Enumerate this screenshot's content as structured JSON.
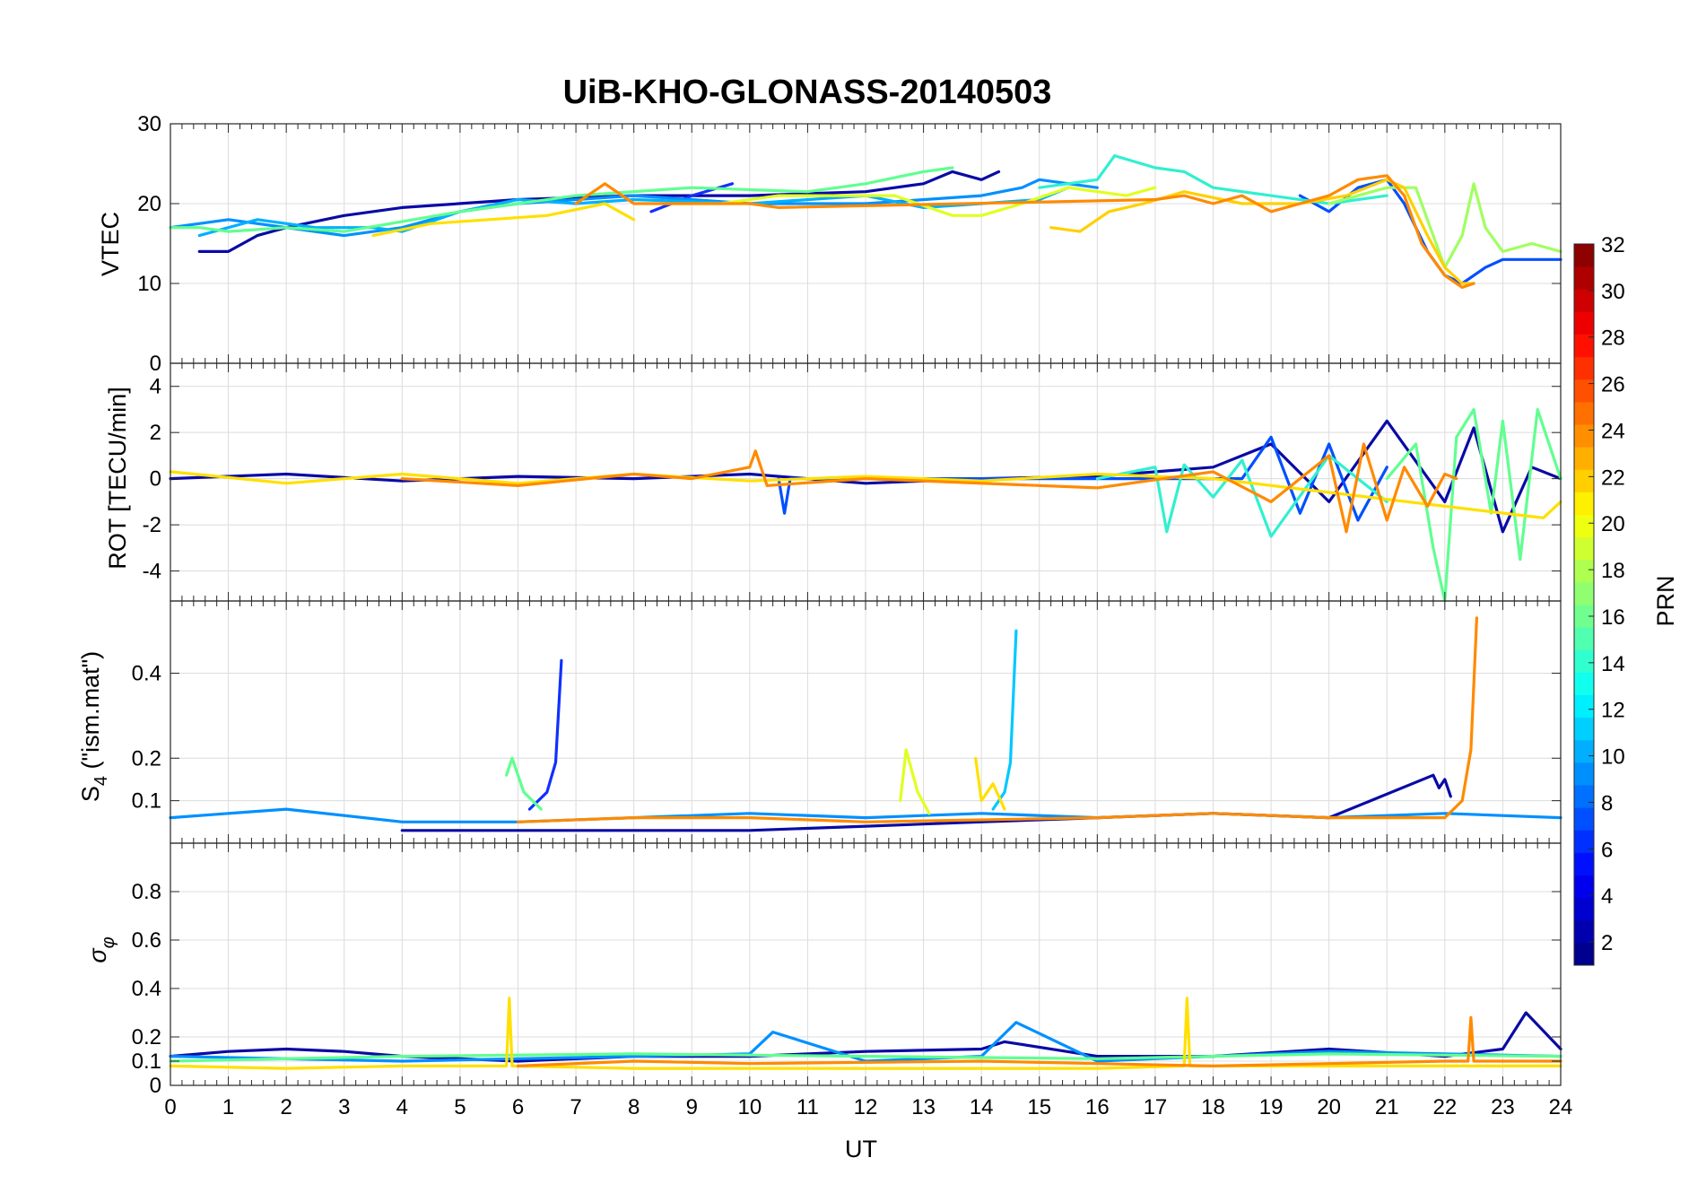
{
  "chart_data": [
    {
      "type": "line",
      "title": "UiB-KHO-GLONASS-20140503",
      "xlabel": "",
      "ylabel": "VTEC",
      "xlim": [
        0,
        24
      ],
      "ylim": [
        0,
        30
      ],
      "xticks": [
        0,
        1,
        2,
        3,
        4,
        5,
        6,
        7,
        8,
        9,
        10,
        11,
        12,
        13,
        14,
        15,
        16,
        17,
        18,
        19,
        20,
        21,
        22,
        23,
        24
      ],
      "yticks": [
        0,
        10,
        20,
        30
      ],
      "grid": true,
      "series": [
        {
          "prn": 2,
          "color": "#0a0aa6",
          "x": [
            0.5,
            1,
            1.5,
            2,
            3,
            4,
            6,
            8,
            10,
            12,
            13,
            13.5,
            14,
            14.3
          ],
          "y": [
            14,
            14,
            16,
            17,
            18.5,
            19.5,
            20.5,
            21,
            21,
            21.5,
            22.5,
            24,
            23,
            24
          ]
        },
        {
          "prn": 5,
          "color": "#1030ff",
          "x": [
            8.3,
            9,
            9.7
          ],
          "y": [
            19,
            21,
            22.5
          ]
        },
        {
          "prn": 6,
          "color": "#0050ff",
          "x": [
            19.5,
            20,
            20.5,
            21,
            21.3,
            21.7,
            22,
            22.3,
            22.7,
            23,
            24
          ],
          "y": [
            21,
            19,
            22,
            23,
            20,
            14,
            11,
            10,
            12,
            13,
            13
          ]
        },
        {
          "prn": 9,
          "color": "#0090ff",
          "x": [
            0,
            1,
            2,
            3,
            4,
            5,
            6,
            8,
            10,
            12,
            14,
            14.7,
            15,
            16
          ],
          "y": [
            17,
            18,
            17,
            16,
            17,
            19,
            20,
            21,
            20,
            20,
            21,
            22,
            23,
            22
          ]
        },
        {
          "prn": 10,
          "color": "#00b0ff",
          "x": [
            0.5,
            1.5,
            2.5,
            3.5,
            4,
            5,
            6,
            7,
            8,
            10,
            12,
            13,
            14,
            15,
            15.5
          ],
          "y": [
            16,
            18,
            17,
            17,
            16.5,
            19,
            20.5,
            20,
            20.5,
            20,
            21,
            19.5,
            20,
            20.5,
            22
          ]
        },
        {
          "prn": 14,
          "color": "#30f0d0",
          "x": [
            15,
            16,
            16.3,
            17,
            17.5,
            18,
            19,
            20,
            21
          ],
          "y": [
            22,
            23,
            26,
            24.5,
            24,
            22,
            21,
            20,
            21
          ]
        },
        {
          "prn": 15,
          "color": "#60ff90",
          "x": [
            0,
            0.5,
            1,
            2,
            3,
            5,
            7,
            9,
            11,
            12,
            13,
            13.5
          ],
          "y": [
            17,
            17,
            16.5,
            17,
            16.5,
            19,
            21,
            22,
            21.5,
            22.5,
            24,
            24.5
          ]
        },
        {
          "prn": 17,
          "color": "#a0ff60",
          "x": [
            20,
            20.5,
            21,
            21.5,
            22,
            22.3,
            22.5,
            22.7,
            23,
            23.5,
            24
          ],
          "y": [
            20,
            21,
            22,
            22,
            12,
            16,
            22.5,
            17,
            14,
            15,
            14
          ]
        },
        {
          "prn": 19,
          "color": "#e0ff20",
          "x": [
            8.5,
            9.5,
            10.5,
            11.5,
            12.5,
            13.5,
            14,
            14.7,
            15.5,
            16.5,
            17
          ],
          "y": [
            20,
            20,
            21,
            21,
            21,
            18.5,
            18.5,
            20,
            22,
            21,
            22
          ]
        },
        {
          "prn": 20,
          "color": "#ffe000",
          "x": [
            3.5,
            4.5,
            5.5,
            6.5,
            7.5,
            8
          ],
          "y": [
            16,
            17.5,
            18,
            18.5,
            20,
            18
          ]
        },
        {
          "prn": 21,
          "color": "#ffd000",
          "x": [
            15.2,
            15.7,
            16.2,
            16.8,
            17.5,
            18.5,
            19.5,
            20.3,
            21,
            21.3,
            21.7,
            22,
            22.3,
            22.5
          ],
          "y": [
            17,
            16.5,
            19,
            20,
            21.5,
            20,
            20,
            21,
            23,
            22,
            16,
            12,
            10,
            10
          ]
        },
        {
          "prn": 23,
          "color": "#ff8a00",
          "x": [
            7,
            7.5,
            8,
            9,
            10,
            10.5,
            17,
            17.5,
            18,
            18.5,
            19,
            19.5,
            20,
            20.5,
            21,
            21.3,
            21.6,
            22,
            22.3,
            22.5
          ],
          "y": [
            20,
            22.5,
            20,
            20,
            20,
            19.5,
            20.5,
            21,
            20,
            21,
            19,
            20,
            21,
            23,
            23.5,
            21,
            15,
            11,
            9.5,
            10
          ]
        }
      ]
    },
    {
      "type": "line",
      "xlabel": "",
      "ylabel": "ROT [TECU/min]",
      "xlim": [
        0,
        24
      ],
      "ylim": [
        -5.3,
        5
      ],
      "yticks": [
        -4,
        -2,
        0,
        2,
        4
      ],
      "grid": true,
      "series": [
        {
          "prn": 2,
          "color": "#0a0aa6",
          "x": [
            0,
            2,
            4,
            6,
            8,
            10,
            12,
            14,
            16,
            18,
            19,
            20,
            21,
            22,
            22.5,
            23,
            23.5,
            24
          ],
          "y": [
            0,
            0.2,
            -0.1,
            0.1,
            0,
            0.2,
            -0.2,
            0,
            0.1,
            0.5,
            1.5,
            -1,
            2.5,
            -1,
            2.2,
            -2.3,
            0.5,
            0
          ]
        },
        {
          "prn": 6,
          "color": "#0050ff",
          "x": [
            10.5,
            10.6,
            10.7,
            18.5,
            19,
            19.5,
            20,
            20.5,
            21
          ],
          "y": [
            0,
            -1.5,
            0,
            0,
            1.8,
            -1.5,
            1.5,
            -1.8,
            0.5
          ]
        },
        {
          "prn": 14,
          "color": "#30f0d0",
          "x": [
            16,
            17,
            17.2,
            17.5,
            18,
            18.5,
            19,
            20,
            21
          ],
          "y": [
            0,
            0.5,
            -2.3,
            0.6,
            -0.8,
            0.8,
            -2.5,
            1,
            -1
          ]
        },
        {
          "prn": 16,
          "color": "#60ff90",
          "x": [
            21,
            21.5,
            21.8,
            22,
            22.2,
            22.5,
            22.8,
            23,
            23.3,
            23.6,
            24
          ],
          "y": [
            0,
            1.5,
            -3,
            -5.3,
            1.8,
            3,
            -1.5,
            2.5,
            -3.5,
            3,
            0
          ]
        },
        {
          "prn": 20,
          "color": "#ffe000",
          "x": [
            0,
            2,
            4,
            6,
            8,
            10,
            12,
            14,
            16,
            18,
            23.7,
            24
          ],
          "y": [
            0.3,
            -0.2,
            0.2,
            -0.2,
            0.2,
            -0.1,
            0.1,
            -0.1,
            0.2,
            0,
            -1.7,
            -1
          ]
        },
        {
          "prn": 23,
          "color": "#ff8a00",
          "x": [
            4,
            6,
            8,
            9,
            10,
            10.1,
            10.3,
            12,
            16,
            18,
            19,
            20,
            20.3,
            20.6,
            21,
            21.3,
            21.7,
            22,
            22.2
          ],
          "y": [
            0,
            -0.3,
            0.2,
            0,
            0.5,
            1.2,
            -0.3,
            0,
            -0.4,
            0.3,
            -1,
            1,
            -2.3,
            1.5,
            -1.8,
            0.5,
            -1.2,
            0.2,
            0
          ]
        }
      ]
    },
    {
      "type": "line",
      "xlabel": "",
      "ylabel": "S4 (\"ism.mat\")",
      "xlim": [
        0,
        24
      ],
      "ylim": [
        0,
        0.57
      ],
      "yticks": [
        0.1,
        0.2,
        0.4
      ],
      "grid": true,
      "series": [
        {
          "prn": 2,
          "color": "#0a0aa6",
          "x": [
            4,
            6,
            8,
            10,
            12,
            14,
            16,
            18,
            20,
            21.8,
            21.9,
            22,
            22.1
          ],
          "y": [
            0.03,
            0.03,
            0.03,
            0.03,
            0.04,
            0.05,
            0.06,
            0.07,
            0.06,
            0.16,
            0.13,
            0.15,
            0.11
          ]
        },
        {
          "prn": 5,
          "color": "#1030ff",
          "x": [
            6.2,
            6.5,
            6.65,
            6.75
          ],
          "y": [
            0.08,
            0.12,
            0.19,
            0.43
          ]
        },
        {
          "prn": 9,
          "color": "#0090ff",
          "x": [
            0,
            2,
            4,
            6,
            8,
            10,
            12,
            14,
            16,
            18,
            20,
            22,
            24
          ],
          "y": [
            0.06,
            0.08,
            0.05,
            0.05,
            0.06,
            0.07,
            0.06,
            0.07,
            0.06,
            0.07,
            0.06,
            0.07,
            0.06
          ]
        },
        {
          "prn": 11,
          "color": "#00c8ff",
          "x": [
            14.2,
            14.4,
            14.5,
            14.6
          ],
          "y": [
            0.08,
            0.12,
            0.19,
            0.5
          ]
        },
        {
          "prn": 16,
          "color": "#60ff90",
          "x": [
            5.8,
            5.9,
            6.1,
            6.4
          ],
          "y": [
            0.16,
            0.2,
            0.12,
            0.08
          ]
        },
        {
          "prn": 19,
          "color": "#e0ff20",
          "x": [
            12.6,
            12.7,
            12.9,
            13.1
          ],
          "y": [
            0.1,
            0.22,
            0.12,
            0.07
          ]
        },
        {
          "prn": 20,
          "color": "#ffe000",
          "x": [
            13.9,
            14,
            14.2,
            14.4
          ],
          "y": [
            0.2,
            0.1,
            0.14,
            0.08
          ]
        },
        {
          "prn": 23,
          "color": "#ff8a00",
          "x": [
            6,
            8,
            10,
            12,
            16,
            18,
            20,
            22,
            22.3,
            22.45,
            22.55
          ],
          "y": [
            0.05,
            0.06,
            0.06,
            0.05,
            0.06,
            0.07,
            0.06,
            0.06,
            0.1,
            0.22,
            0.53
          ]
        }
      ]
    },
    {
      "type": "line",
      "xlabel": "UT",
      "ylabel": "σφ",
      "xlim": [
        0,
        24
      ],
      "ylim": [
        0,
        1
      ],
      "yticks": [
        0,
        0.1,
        0.2,
        0.4,
        0.6,
        0.8
      ],
      "grid": true,
      "series": [
        {
          "prn": 2,
          "color": "#0a0aa6",
          "x": [
            0,
            1,
            2,
            3,
            4,
            6,
            8,
            10,
            12,
            14,
            14.4,
            16,
            18,
            20,
            22,
            23,
            23.4,
            24
          ],
          "y": [
            0.12,
            0.14,
            0.15,
            0.14,
            0.12,
            0.1,
            0.12,
            0.12,
            0.14,
            0.15,
            0.18,
            0.12,
            0.12,
            0.15,
            0.12,
            0.15,
            0.3,
            0.15
          ]
        },
        {
          "prn": 9,
          "color": "#0090ff",
          "x": [
            0,
            4,
            8,
            10,
            10.4,
            12,
            14,
            14.6,
            16,
            20,
            24
          ],
          "y": [
            0.12,
            0.1,
            0.12,
            0.13,
            0.22,
            0.1,
            0.12,
            0.26,
            0.1,
            0.14,
            0.12
          ]
        },
        {
          "prn": 15,
          "color": "#60ff90",
          "x": [
            0,
            4,
            8,
            12,
            16,
            20,
            24
          ],
          "y": [
            0.1,
            0.12,
            0.13,
            0.12,
            0.11,
            0.13,
            0.12
          ]
        },
        {
          "prn": 20,
          "color": "#ffe000",
          "x": [
            0,
            2,
            4,
            5.8,
            5.85,
            5.9,
            8,
            12,
            16,
            17.5,
            17.55,
            17.6,
            20,
            24
          ],
          "y": [
            0.08,
            0.07,
            0.08,
            0.08,
            0.36,
            0.08,
            0.07,
            0.07,
            0.07,
            0.08,
            0.36,
            0.08,
            0.08,
            0.08
          ]
        },
        {
          "prn": 23,
          "color": "#ff8a00",
          "x": [
            6,
            8,
            10,
            14,
            18,
            20,
            22,
            22.4,
            22.45,
            22.5,
            24
          ],
          "y": [
            0.08,
            0.1,
            0.09,
            0.1,
            0.08,
            0.09,
            0.1,
            0.1,
            0.28,
            0.1,
            0.1
          ]
        }
      ]
    }
  ],
  "colorbar": {
    "label": "PRN",
    "ticks": [
      2,
      4,
      6,
      8,
      10,
      12,
      14,
      16,
      18,
      20,
      22,
      24,
      26,
      28,
      30,
      32
    ],
    "colormap": "jet"
  }
}
